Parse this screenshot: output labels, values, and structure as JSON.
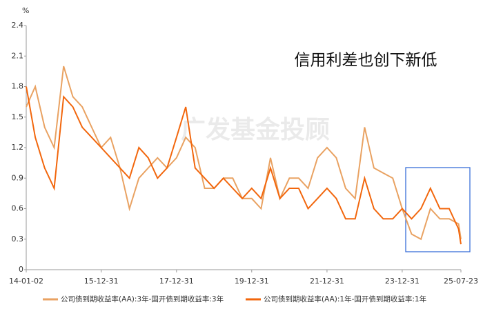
{
  "chart_data": {
    "type": "line",
    "unit": "%",
    "annotation": "信用利差也创下新低",
    "watermark": "广发基金投顾",
    "x": [
      "14-01-02",
      "14-03-31",
      "14-06-30",
      "14-09-30",
      "14-12-31",
      "15-03-31",
      "15-06-30",
      "15-09-30",
      "15-12-31",
      "16-03-31",
      "16-06-30",
      "16-09-30",
      "16-12-31",
      "17-03-31",
      "17-06-30",
      "17-09-30",
      "17-12-31",
      "18-03-31",
      "18-06-30",
      "18-09-30",
      "18-12-31",
      "19-03-31",
      "19-06-30",
      "19-09-30",
      "19-12-31",
      "20-03-31",
      "20-06-30",
      "20-09-30",
      "20-12-31",
      "21-03-31",
      "21-06-30",
      "21-09-30",
      "21-12-31",
      "22-03-31",
      "22-06-30",
      "22-09-30",
      "22-12-31",
      "23-03-31",
      "23-06-30",
      "23-09-30",
      "23-12-31",
      "24-03-31",
      "24-06-30",
      "24-09-30",
      "24-12-31",
      "25-03-31",
      "25-06-30",
      "25-07-23"
    ],
    "series": [
      {
        "name": "公司债到期收益率(AA):3年-国开债到期收益率:3年",
        "color": "#e9a262",
        "values": [
          1.6,
          1.8,
          1.4,
          1.2,
          2.0,
          1.7,
          1.6,
          1.4,
          1.2,
          1.3,
          1.0,
          0.6,
          0.9,
          1.0,
          1.1,
          1.0,
          1.1,
          1.3,
          1.2,
          0.8,
          0.8,
          0.9,
          0.9,
          0.7,
          0.7,
          0.6,
          1.1,
          0.7,
          0.9,
          0.9,
          0.8,
          1.1,
          1.2,
          1.1,
          0.8,
          0.7,
          1.4,
          1.0,
          0.95,
          0.9,
          0.6,
          0.35,
          0.3,
          0.6,
          0.5,
          0.5,
          0.45,
          0.3
        ]
      },
      {
        "name": "公司债到期收益率(AA):1年-国开债到期收益率:1年",
        "color": "#f2660c",
        "values": [
          1.8,
          1.3,
          1.0,
          0.8,
          1.7,
          1.6,
          1.4,
          1.3,
          1.2,
          1.1,
          1.0,
          0.9,
          1.2,
          1.1,
          0.9,
          1.0,
          1.3,
          1.6,
          1.0,
          0.9,
          0.8,
          0.9,
          0.8,
          0.7,
          0.8,
          0.7,
          1.0,
          0.7,
          0.8,
          0.8,
          0.6,
          0.7,
          0.8,
          0.7,
          0.5,
          0.5,
          0.9,
          0.6,
          0.5,
          0.5,
          0.6,
          0.5,
          0.6,
          0.8,
          0.6,
          0.6,
          0.4,
          0.25
        ]
      }
    ],
    "xlim": [
      "14-01-02",
      "25-07-23"
    ],
    "xticks": [
      "14-01-02",
      "15-12-31",
      "17-12-31",
      "19-12-31",
      "21-12-31",
      "23-12-31",
      "25-07-23"
    ],
    "ylim": [
      0,
      2.4
    ],
    "yticks": [
      0,
      0.3,
      0.6,
      0.9,
      1.2,
      1.5,
      1.8,
      2.1,
      2.4
    ],
    "grid": false,
    "legend": "bottom"
  }
}
